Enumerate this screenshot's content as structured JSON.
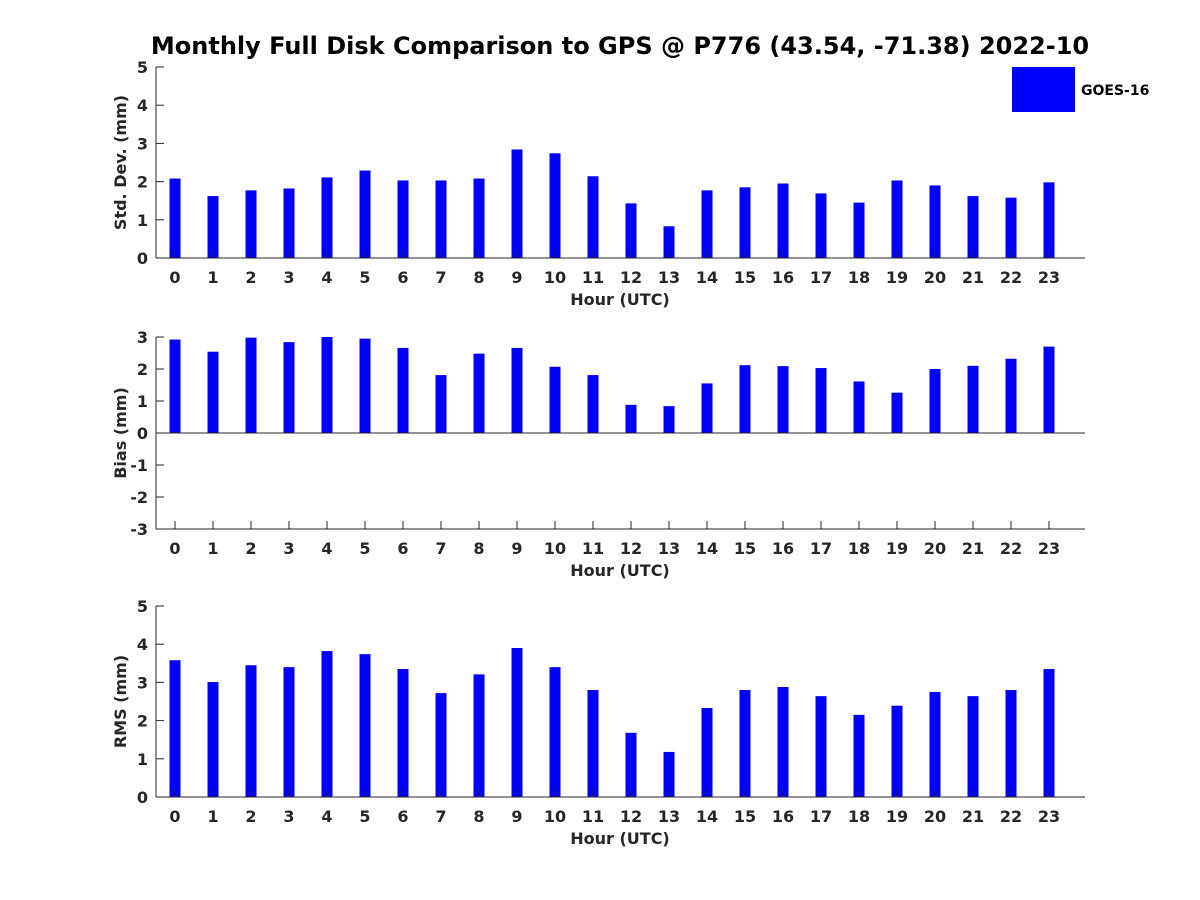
{
  "title": "Monthly Full Disk Comparison to GPS @ P776 (43.54, -71.38) 2022-10",
  "legend": {
    "label": "GOES-16",
    "color": "#0000ff",
    "placement": "top-right"
  },
  "chart_data": [
    {
      "type": "bar",
      "xlabel": "Hour (UTC)",
      "ylabel": "Std. Dev. (mm)",
      "ylim": [
        0,
        5
      ],
      "yticks": [
        0,
        1,
        2,
        3,
        4,
        5
      ],
      "categories": [
        "0",
        "1",
        "2",
        "3",
        "4",
        "5",
        "6",
        "7",
        "8",
        "9",
        "10",
        "11",
        "12",
        "13",
        "14",
        "15",
        "16",
        "17",
        "18",
        "19",
        "20",
        "21",
        "22",
        "23"
      ],
      "series": [
        {
          "name": "GOES-16",
          "color": "#0000ff",
          "values": [
            2.08,
            1.62,
            1.77,
            1.82,
            2.11,
            2.29,
            2.03,
            2.03,
            2.08,
            2.84,
            2.74,
            2.14,
            1.43,
            0.83,
            1.77,
            1.85,
            1.95,
            1.69,
            1.45,
            2.03,
            1.9,
            1.62,
            1.58,
            1.98
          ]
        }
      ]
    },
    {
      "type": "bar",
      "xlabel": "Hour (UTC)",
      "ylabel": "Bias (mm)",
      "ylim": [
        -3,
        3
      ],
      "yticks": [
        -3,
        -2,
        -1,
        0,
        1,
        2,
        3
      ],
      "categories": [
        "0",
        "1",
        "2",
        "3",
        "4",
        "5",
        "6",
        "7",
        "8",
        "9",
        "10",
        "11",
        "12",
        "13",
        "14",
        "15",
        "16",
        "17",
        "18",
        "19",
        "20",
        "21",
        "22",
        "23"
      ],
      "series": [
        {
          "name": "GOES-16",
          "color": "#0000ff",
          "values": [
            2.92,
            2.54,
            2.98,
            2.84,
            3.0,
            2.95,
            2.66,
            1.81,
            2.48,
            2.66,
            2.07,
            1.81,
            0.88,
            0.84,
            1.55,
            2.12,
            2.09,
            2.03,
            1.61,
            1.26,
            2.0,
            2.1,
            2.32,
            2.7
          ]
        }
      ]
    },
    {
      "type": "bar",
      "xlabel": "Hour (UTC)",
      "ylabel": "RMS (mm)",
      "ylim": [
        0,
        5
      ],
      "yticks": [
        0,
        1,
        2,
        3,
        4,
        5
      ],
      "categories": [
        "0",
        "1",
        "2",
        "3",
        "4",
        "5",
        "6",
        "7",
        "8",
        "9",
        "10",
        "11",
        "12",
        "13",
        "14",
        "15",
        "16",
        "17",
        "18",
        "19",
        "20",
        "21",
        "22",
        "23"
      ],
      "series": [
        {
          "name": "GOES-16",
          "color": "#0000ff",
          "values": [
            3.58,
            3.01,
            3.45,
            3.4,
            3.82,
            3.74,
            3.35,
            2.72,
            3.21,
            3.9,
            3.4,
            2.8,
            1.68,
            1.18,
            2.33,
            2.8,
            2.88,
            2.64,
            2.15,
            2.39,
            2.75,
            2.64,
            2.8,
            3.35
          ]
        }
      ]
    }
  ]
}
